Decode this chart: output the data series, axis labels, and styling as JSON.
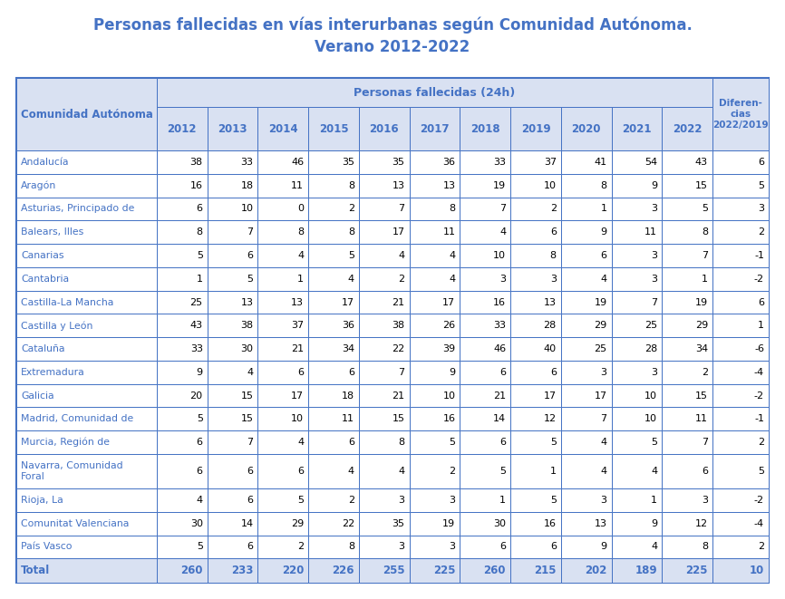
{
  "title_line1": "Personas fallecidas en vías interurbanas según Comunidad Autónoma.",
  "title_line2": "Verano 2012-2022",
  "header1": "Personas fallecidas (24h)",
  "col_header_left": "Comunidad Autónoma",
  "col_header_right": "Diferen-\ncias\n2022/2019",
  "year_headers": [
    "2012",
    "2013",
    "2014",
    "2015",
    "2016",
    "2017",
    "2018",
    "2019",
    "2020",
    "2021",
    "2022"
  ],
  "communities": [
    "Andalucía",
    "Aragón",
    "Asturias, Principado de",
    "Balears, Illes",
    "Canarias",
    "Cantabria",
    "Castilla-La Mancha",
    "Castilla y León",
    "Cataluña",
    "Extremadura",
    "Galicia",
    "Madrid, Comunidad de",
    "Murcia, Región de",
    "Navarra, Comunidad\nForal",
    "Rioja, La",
    "Comunitat Valenciana",
    "País Vasco"
  ],
  "data": [
    [
      38,
      33,
      46,
      35,
      35,
      36,
      33,
      37,
      41,
      54,
      43,
      6
    ],
    [
      16,
      18,
      11,
      8,
      13,
      13,
      19,
      10,
      8,
      9,
      15,
      5
    ],
    [
      6,
      10,
      0,
      2,
      7,
      8,
      7,
      2,
      1,
      3,
      5,
      3
    ],
    [
      8,
      7,
      8,
      8,
      17,
      11,
      4,
      6,
      9,
      11,
      8,
      2
    ],
    [
      5,
      6,
      4,
      5,
      4,
      4,
      10,
      8,
      6,
      3,
      7,
      -1
    ],
    [
      1,
      5,
      1,
      4,
      2,
      4,
      3,
      3,
      4,
      3,
      1,
      -2
    ],
    [
      25,
      13,
      13,
      17,
      21,
      17,
      16,
      13,
      19,
      7,
      19,
      6
    ],
    [
      43,
      38,
      37,
      36,
      38,
      26,
      33,
      28,
      29,
      25,
      29,
      1
    ],
    [
      33,
      30,
      21,
      34,
      22,
      39,
      46,
      40,
      25,
      28,
      34,
      -6
    ],
    [
      9,
      4,
      6,
      6,
      7,
      9,
      6,
      6,
      3,
      3,
      2,
      -4
    ],
    [
      20,
      15,
      17,
      18,
      21,
      10,
      21,
      17,
      17,
      10,
      15,
      -2
    ],
    [
      5,
      15,
      10,
      11,
      15,
      16,
      14,
      12,
      7,
      10,
      11,
      -1
    ],
    [
      6,
      7,
      4,
      6,
      8,
      5,
      6,
      5,
      4,
      5,
      7,
      2
    ],
    [
      6,
      6,
      6,
      4,
      4,
      2,
      5,
      1,
      4,
      4,
      6,
      5
    ],
    [
      4,
      6,
      5,
      2,
      3,
      3,
      1,
      5,
      3,
      1,
      3,
      -2
    ],
    [
      30,
      14,
      29,
      22,
      35,
      19,
      30,
      16,
      13,
      9,
      12,
      -4
    ],
    [
      5,
      6,
      2,
      8,
      3,
      3,
      6,
      6,
      9,
      4,
      8,
      2
    ]
  ],
  "totals": [
    260,
    233,
    220,
    226,
    255,
    225,
    260,
    215,
    202,
    189,
    225,
    10
  ],
  "title_color": "#4472C4",
  "header_color": "#4472C4",
  "community_color": "#4472C4",
  "total_color": "#4472C4",
  "header_bg": "#D9E1F2",
  "total_bg": "#D9E1F2",
  "border_color": "#4472C4",
  "fig_w": 8.66,
  "fig_h": 6.61,
  "dpi": 100
}
